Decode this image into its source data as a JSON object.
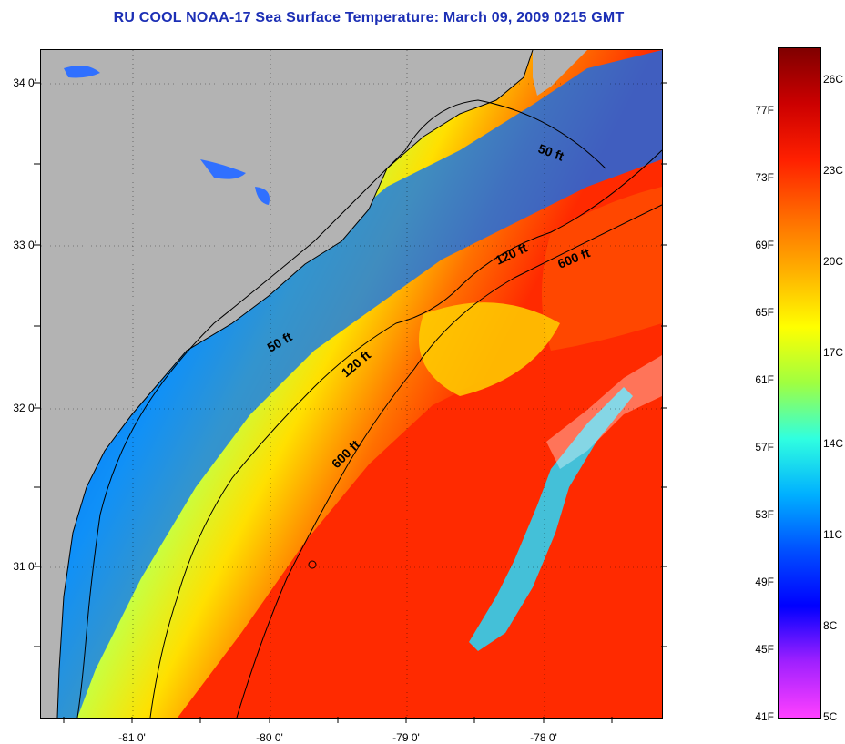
{
  "title": "RU COOL  NOAA-17  Sea Surface Temperature:  March 09, 2009 0215 GMT",
  "map": {
    "land_color": "#b3b3b3",
    "latitude_ticks": [
      "34 0'",
      "33 0'",
      "32 0'",
      "31 0'"
    ],
    "longitude_ticks": [
      "-81 0'",
      "-80 0'",
      "-79 0'",
      "-78 0'"
    ],
    "contour_labels": [
      "50 ft",
      "120 ft",
      "600 ft",
      "50 ft",
      "120 ft",
      "600 ft"
    ]
  },
  "colorbar": {
    "fahrenheit_labels": [
      "77F",
      "73F",
      "69F",
      "65F",
      "61F",
      "57F",
      "53F",
      "49F",
      "45F",
      "41F"
    ],
    "celsius_labels": [
      "26C",
      "23C",
      "20C",
      "17C",
      "14C",
      "11C",
      "8C",
      "5C"
    ],
    "colors": [
      "#800000",
      "#cc0000",
      "#ff2000",
      "#ff6a00",
      "#ffb000",
      "#ffff00",
      "#a0ff40",
      "#30ffe0",
      "#00b0ff",
      "#0050ff",
      "#0000ff",
      "#a020ff",
      "#ff40ff"
    ]
  }
}
